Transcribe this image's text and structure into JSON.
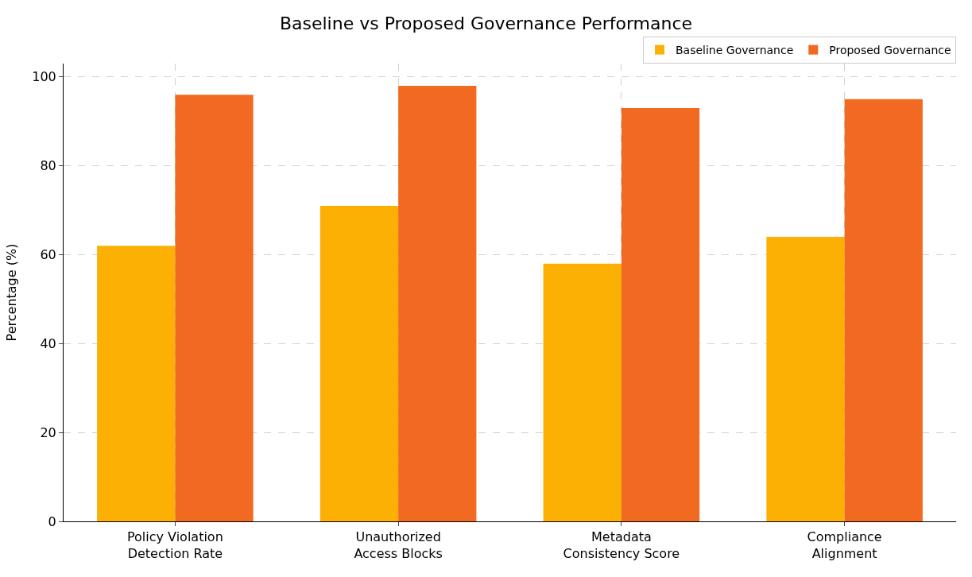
{
  "chart_data": {
    "type": "bar",
    "title": "Baseline vs Proposed Governance Performance",
    "ylabel": "Percentage (%)",
    "categories": [
      "Policy Violation\nDetection Rate",
      "Unauthorized\nAccess Blocks",
      "Metadata\nConsistency Score",
      "Compliance\nAlignment"
    ],
    "series": [
      {
        "name": "Baseline Governance",
        "color": "#fbb003",
        "values": [
          62,
          71,
          58,
          64
        ]
      },
      {
        "name": "Proposed Governance",
        "color": "#f26922",
        "values": [
          96,
          98,
          93,
          95
        ]
      }
    ],
    "ylim": [
      0,
      103
    ],
    "yticks": [
      0,
      20,
      40,
      60,
      80,
      100
    ],
    "grid": true,
    "legend": "top right"
  }
}
